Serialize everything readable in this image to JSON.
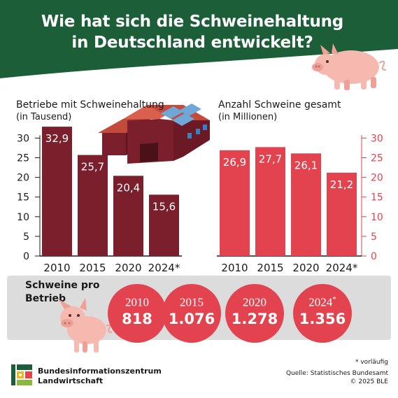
{
  "title_line1": "Wie hat sich die Schweinehaltung",
  "title_line2": "in Deutschland entwickelt?",
  "colors": {
    "header_green": "#1b5e38",
    "bar_left": "#7a1f2b",
    "bar_right": "#e2434e",
    "axis_right": "#e2434e",
    "panel_grey": "#dcdcdc"
  },
  "chart_data": [
    {
      "type": "bar",
      "title": "Betriebe mit Schweinehaltung",
      "subtitle": "(in Tausend)",
      "categories": [
        "2010",
        "2015",
        "2020",
        "2024*"
      ],
      "values": [
        32.9,
        25.7,
        20.4,
        15.6
      ],
      "value_labels": [
        "32,9",
        "25,7",
        "20,4",
        "15,6"
      ],
      "ylim": [
        0,
        33
      ],
      "yticks": [
        0,
        5,
        10,
        15,
        20,
        25,
        30
      ],
      "axis_side": "left",
      "grid": false
    },
    {
      "type": "bar",
      "title": "Anzahl Schweine gesamt",
      "subtitle": "(in Millionen)",
      "categories": [
        "2010",
        "2015",
        "2020",
        "2024*"
      ],
      "values": [
        26.9,
        27.7,
        26.1,
        21.2
      ],
      "value_labels": [
        "26,9",
        "27,7",
        "26,1",
        "21,2"
      ],
      "ylim": [
        0,
        33
      ],
      "yticks": [
        0,
        5,
        10,
        15,
        20,
        25,
        30
      ],
      "axis_side": "right",
      "grid": false
    }
  ],
  "per_farm": {
    "label": "Schweine pro Betrieb",
    "items": [
      {
        "year": "2010",
        "star": "",
        "value": "818"
      },
      {
        "year": "2015",
        "star": "",
        "value": "1.076"
      },
      {
        "year": "2020",
        "star": "",
        "value": "1.278"
      },
      {
        "year": "2024",
        "star": "*",
        "value": "1.356"
      }
    ]
  },
  "footer": {
    "org_line1": "Bundesinformationszentrum",
    "org_line2": "Landwirtschaft",
    "footnote": "* vorläufig",
    "source_line1": "Quelle: Statistisches Bundesamt",
    "source_line2": "© 2025 BLE"
  }
}
